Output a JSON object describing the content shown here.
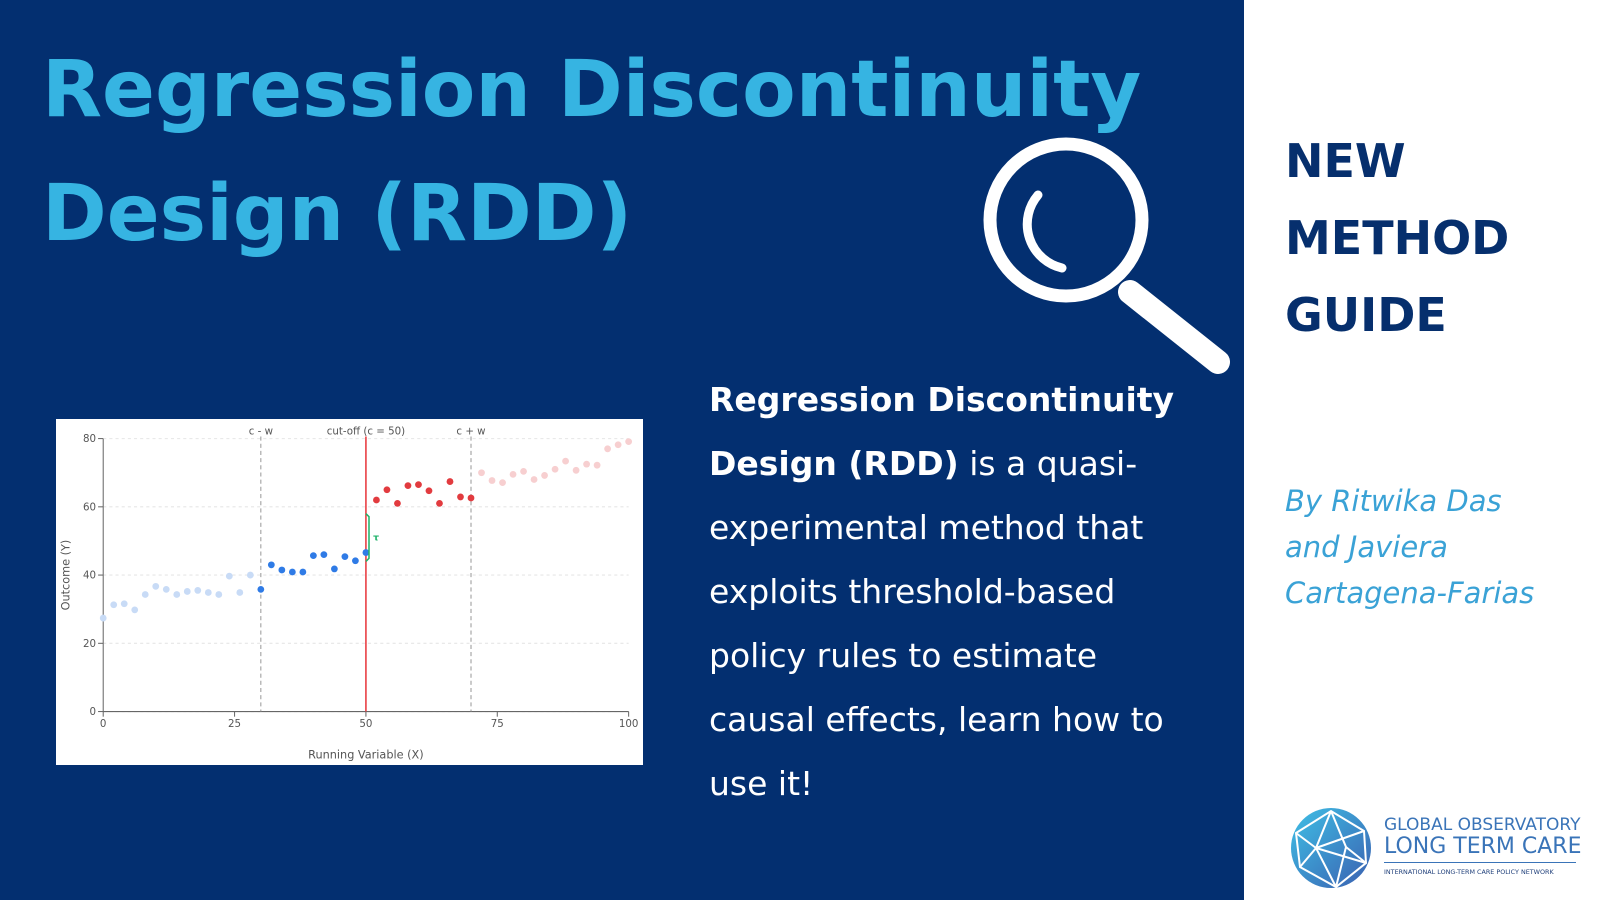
{
  "title": "Regression Discontinuity Design (RDD)",
  "description": {
    "bold": "Regression Discontinuity Design (RDD)",
    "text": "is a quasi-experimental method that exploits threshold-based policy rules to estimate causal effects, learn how to use it!"
  },
  "sidebar": {
    "heading": [
      "NEW",
      "METHOD",
      "GUIDE"
    ],
    "byline": [
      "By Ritwika Das",
      "and Javiera",
      "Cartagena-Farias"
    ]
  },
  "logo": {
    "line1": "GLOBAL OBSERVATORY",
    "line2": "LONG TERM CARE",
    "tagline": "INTERNATIONAL LONG-TERM CARE POLICY NETWORK"
  },
  "chart_data": {
    "type": "scatter",
    "x_label": "Running Variable (X)",
    "y_label": "Outcome (Y)",
    "xlim": [
      0,
      100
    ],
    "ylim": [
      0,
      80
    ],
    "xticks": [
      0,
      25,
      50,
      75,
      100
    ],
    "yticks": [
      0,
      20,
      40,
      60,
      80
    ],
    "grid": true,
    "series": [
      {
        "color": "#c8dbf6",
        "x": [
          0,
          2,
          4,
          6,
          8,
          10,
          12,
          14,
          16,
          18,
          20,
          22,
          24,
          26,
          28
        ],
        "values": [
          27.4,
          31.3,
          31.6,
          29.8,
          34.3,
          36.7,
          35.8,
          34.3,
          35.2,
          35.5,
          34.9,
          34.3,
          39.7,
          34.9,
          40
        ]
      },
      {
        "color": "#2f7be6",
        "x": [
          30,
          32,
          34,
          36,
          38,
          40,
          42,
          44,
          46,
          48,
          50
        ],
        "values": [
          35.8,
          43,
          41.5,
          40.9,
          40.9,
          45.7,
          46,
          41.8,
          45.4,
          44.2,
          46.6
        ]
      },
      {
        "color": "#e23b3f",
        "x": [
          52,
          54,
          56,
          58,
          60,
          62,
          64,
          66,
          68,
          70
        ],
        "values": [
          62,
          65,
          61,
          66.2,
          66.5,
          64.7,
          61,
          67.4,
          62.9,
          62.6
        ]
      },
      {
        "color": "#f7cfd0",
        "x": [
          72,
          74,
          76,
          78,
          80,
          82,
          84,
          86,
          88,
          90,
          92,
          94,
          96,
          98,
          100
        ],
        "values": [
          70,
          67.7,
          67.1,
          69.5,
          70.4,
          68,
          69.2,
          71,
          73.4,
          70.7,
          72.5,
          72.2,
          77,
          78.2,
          79.1
        ]
      }
    ],
    "annotations": [
      {
        "x": 30,
        "label": "c - w",
        "style": "dashed",
        "color": "#999999"
      },
      {
        "x": 50,
        "label": "cut-off (c = 50)",
        "style": "solid",
        "color": "#e8393d"
      },
      {
        "x": 70,
        "label": "c + w",
        "style": "dashed",
        "color": "#999999"
      }
    ],
    "effect": {
      "x": 50,
      "from": 44,
      "to": 58,
      "label": "τ",
      "color": "#22b36b"
    }
  }
}
